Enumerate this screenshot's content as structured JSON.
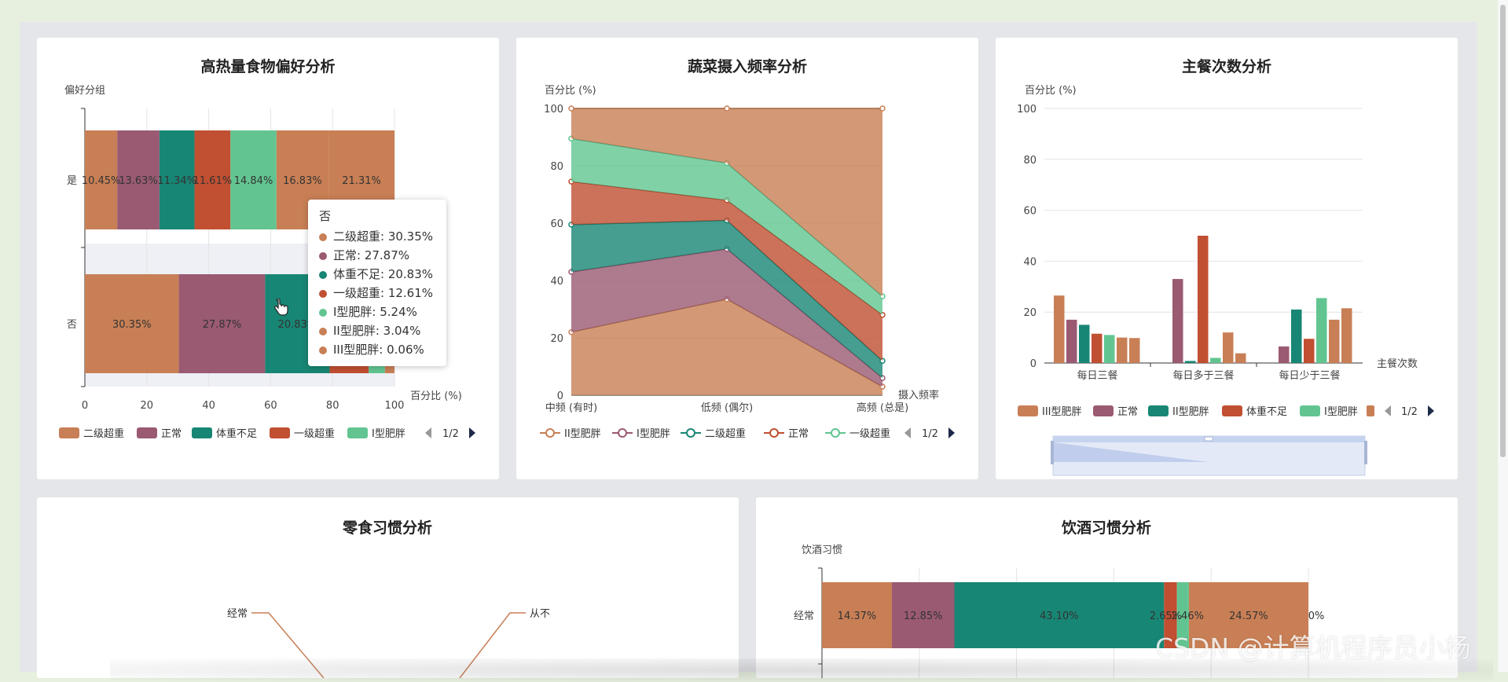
{
  "colors": {
    "ii_over": "#c87f55",
    "normal": "#9a5a72",
    "under": "#188674",
    "i_over": "#c14f31",
    "i_obese": "#62c591",
    "ii_obese": "#c97f55",
    "iii_obese": "#c97f55"
  },
  "chart_data": [
    {
      "type": "bar",
      "orientation": "horizontal",
      "stacked": true,
      "title": "高热量食物偏好分析",
      "ylabel": "偏好分组",
      "xlabel": "百分比 (%)",
      "categories": [
        "否",
        "是"
      ],
      "xlim": [
        0,
        100
      ],
      "xticks": [
        "0",
        "20",
        "40",
        "60",
        "80",
        "100"
      ],
      "series": [
        {
          "name": "二级超重",
          "values": [
            30.35,
            10.45
          ],
          "color": "#c87f55"
        },
        {
          "name": "正常",
          "values": [
            27.87,
            13.63
          ],
          "color": "#9a5a72"
        },
        {
          "name": "体重不足",
          "values": [
            20.83,
            11.34
          ],
          "color": "#188674"
        },
        {
          "name": "一级超重",
          "values": [
            12.61,
            11.61
          ],
          "color": "#c14f31"
        },
        {
          "name": "I型肥胖",
          "values": [
            5.24,
            14.84
          ],
          "color": "#62c591"
        },
        {
          "name": "II型肥胖",
          "values": [
            3.04,
            16.83
          ],
          "color": "#c97f55"
        },
        {
          "name": "III型肥胖",
          "values": [
            0.06,
            21.31
          ],
          "color": "#c97f55"
        }
      ],
      "bar_labels": {
        "是": [
          "10.45%",
          "13.63%",
          "11.34%",
          "11.61%",
          "14.84%",
          "16.83%",
          "21.31%"
        ],
        "否": [
          "30.35%",
          "27.87%",
          "20.83%"
        ]
      },
      "legend": {
        "items": [
          "二级超重",
          "正常",
          "体重不足",
          "一级超重",
          "I型肥胖"
        ],
        "page": "1/2",
        "placement": "bottom"
      },
      "tooltip": {
        "title": "否",
        "rows": [
          "二级超重: 30.35%",
          "正常: 27.87%",
          "体重不足: 20.83%",
          "一级超重: 12.61%",
          "I型肥胖: 5.24%",
          "II型肥胖: 3.04%",
          "III型肥胖: 0.06%"
        ]
      }
    },
    {
      "type": "area",
      "stacked": true,
      "title": "蔬菜摄入频率分析",
      "ylabel": "百分比 (%)",
      "xlabel": "摄入频率",
      "categories": [
        "中频 (有时)",
        "低频 (偶尔)",
        "高频 (总是)"
      ],
      "ylim": [
        0,
        100
      ],
      "yticks": [
        "0",
        "20",
        "40",
        "60",
        "80",
        "100"
      ],
      "series": [
        {
          "name": "II型肥胖",
          "values": [
            22,
            33.5,
            3
          ],
          "color": "#c87f55"
        },
        {
          "name": "I型肥胖",
          "values": [
            21,
            17.5,
            3
          ],
          "color": "#9a5a72"
        },
        {
          "name": "二级超重",
          "values": [
            16.5,
            10,
            6
          ],
          "color": "#188674"
        },
        {
          "name": "正常",
          "values": [
            15,
            7,
            16
          ],
          "color": "#c14f31"
        },
        {
          "name": "一级超重",
          "values": [
            15,
            13,
            6.5
          ],
          "color": "#62c591"
        },
        {
          "name": "",
          "values": [
            10.5,
            19,
            65.5
          ],
          "color": "#c87f55"
        }
      ],
      "legend": {
        "items": [
          "II型肥胖",
          "I型肥胖",
          "二级超重",
          "正常",
          "一级超重"
        ],
        "page": "1/2",
        "placement": "bottom"
      }
    },
    {
      "type": "bar",
      "title": "主餐次数分析",
      "ylabel": "百分比 (%)",
      "xlabel": "主餐次数",
      "categories": [
        "每日三餐",
        "每日多于三餐",
        "每日少于三餐"
      ],
      "ylim": [
        0,
        100
      ],
      "yticks": [
        "0",
        "20",
        "40",
        "60",
        "80",
        "100"
      ],
      "series": [
        {
          "name": "III型肥胖",
          "values": [
            26.5,
            0,
            0
          ],
          "color": "#c87f55"
        },
        {
          "name": "正常",
          "values": [
            17,
            33,
            6.5
          ],
          "color": "#9a5a72"
        },
        {
          "name": "II型肥胖",
          "values": [
            15,
            0.8,
            21
          ],
          "color": "#188674"
        },
        {
          "name": "体重不足",
          "values": [
            11.5,
            50,
            9.5
          ],
          "color": "#c14f31"
        },
        {
          "name": "I型肥胖",
          "values": [
            11,
            2,
            25.5
          ],
          "color": "#62c591"
        },
        {
          "name": "",
          "values": [
            10,
            12,
            17
          ],
          "color": "#c87f55"
        },
        {
          "name": "",
          "values": [
            9.8,
            3.8,
            21.5
          ],
          "color": "#c87f55"
        }
      ],
      "legend": {
        "items": [
          "III型肥胖",
          "正常",
          "II型肥胖",
          "体重不足",
          "I型肥胖"
        ],
        "page": "1/2",
        "placement": "bottom"
      }
    },
    {
      "type": "pie",
      "title": "零食习惯分析",
      "labels": [
        "经常",
        "从不"
      ]
    },
    {
      "type": "bar",
      "orientation": "horizontal",
      "stacked": true,
      "title": "饮酒习惯分析",
      "ylabel": "饮酒习惯",
      "categories": [
        "经常"
      ],
      "series": [
        {
          "name": "",
          "values": [
            14.37
          ],
          "color": "#c87f55"
        },
        {
          "name": "",
          "values": [
            12.85
          ],
          "color": "#9a5a72"
        },
        {
          "name": "",
          "values": [
            43.1
          ],
          "color": "#188674"
        },
        {
          "name": "",
          "values": [
            2.65
          ],
          "color": "#c14f31"
        },
        {
          "name": "",
          "values": [
            2.46
          ],
          "color": "#62c591"
        },
        {
          "name": "",
          "values": [
            24.57
          ],
          "color": "#c97f55"
        },
        {
          "name": "",
          "values": [
            0
          ],
          "color": "#c97f55"
        }
      ],
      "bar_labels": [
        "14.37%",
        "12.85%",
        "43.10%",
        "2.65%",
        "2.46%",
        "24.57%",
        "0%"
      ]
    }
  ],
  "watermark": "CSDN @计算机程序员小杨"
}
